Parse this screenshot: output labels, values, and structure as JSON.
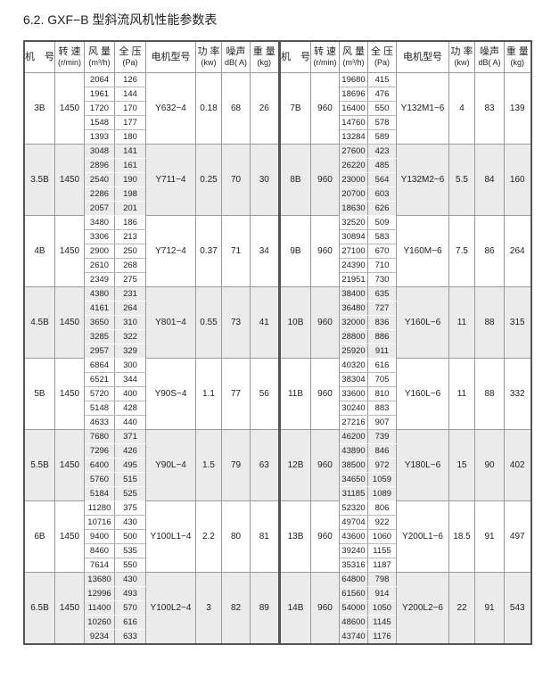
{
  "title": "6.2. GXF−B 型斜流风机性能参数表",
  "headers": [
    {
      "label": "机　号",
      "unit": ""
    },
    {
      "label": "转 速",
      "unit": "(r/min)"
    },
    {
      "label": "风 量",
      "unit": "(m³/h)"
    },
    {
      "label": "全 压",
      "unit": "(Pa)"
    },
    {
      "label": "电机型号",
      "unit": ""
    },
    {
      "label": "功 率",
      "unit": "(kw)"
    },
    {
      "label": "噪声",
      "unit": "dB( A)"
    },
    {
      "label": "重 量",
      "unit": "(kg)"
    }
  ],
  "left_groups": [
    {
      "model": "3B",
      "speed": "1450",
      "airflow": [
        "2064",
        "1961",
        "1720",
        "1548",
        "1393"
      ],
      "pressure": [
        "126",
        "144",
        "170",
        "177",
        "180"
      ],
      "motor": "Y632−4",
      "power": "0.18",
      "noise": "68",
      "weight": "26"
    },
    {
      "model": "3.5B",
      "speed": "1450",
      "airflow": [
        "3048",
        "2896",
        "2540",
        "2286",
        "2057"
      ],
      "pressure": [
        "141",
        "161",
        "190",
        "198",
        "201"
      ],
      "motor": "Y711−4",
      "power": "0.25",
      "noise": "70",
      "weight": "30"
    },
    {
      "model": "4B",
      "speed": "1450",
      "airflow": [
        "3480",
        "3306",
        "2900",
        "2610",
        "2349"
      ],
      "pressure": [
        "186",
        "213",
        "250",
        "268",
        "275"
      ],
      "motor": "Y712−4",
      "power": "0.37",
      "noise": "71",
      "weight": "34"
    },
    {
      "model": "4.5B",
      "speed": "1450",
      "airflow": [
        "4380",
        "4161",
        "3650",
        "3285",
        "2957"
      ],
      "pressure": [
        "231",
        "264",
        "310",
        "322",
        "329"
      ],
      "motor": "Y801−4",
      "power": "0.55",
      "noise": "73",
      "weight": "41"
    },
    {
      "model": "5B",
      "speed": "1450",
      "airflow": [
        "6864",
        "6521",
        "5720",
        "5148",
        "4633"
      ],
      "pressure": [
        "300",
        "344",
        "400",
        "428",
        "440"
      ],
      "motor": "Y90S−4",
      "power": "1.1",
      "noise": "77",
      "weight": "56"
    },
    {
      "model": "5.5B",
      "speed": "1450",
      "airflow": [
        "7680",
        "7296",
        "6400",
        "5760",
        "5184"
      ],
      "pressure": [
        "371",
        "426",
        "495",
        "515",
        "525"
      ],
      "motor": "Y90L−4",
      "power": "1.5",
      "noise": "79",
      "weight": "63"
    },
    {
      "model": "6B",
      "speed": "1450",
      "airflow": [
        "11280",
        "10716",
        "9400",
        "8460",
        "7614"
      ],
      "pressure": [
        "375",
        "430",
        "500",
        "535",
        "550"
      ],
      "motor": "Y100L1−4",
      "power": "2.2",
      "noise": "80",
      "weight": "81"
    },
    {
      "model": "6.5B",
      "speed": "1450",
      "airflow": [
        "13680",
        "12996",
        "11400",
        "10260",
        "9234"
      ],
      "pressure": [
        "430",
        "493",
        "570",
        "616",
        "633"
      ],
      "motor": "Y100L2−4",
      "power": "3",
      "noise": "82",
      "weight": "89"
    }
  ],
  "right_groups": [
    {
      "model": "7B",
      "speed": "960",
      "airflow": [
        "19680",
        "18696",
        "16400",
        "14760",
        "13284"
      ],
      "pressure": [
        "415",
        "476",
        "550",
        "578",
        "589"
      ],
      "motor": "Y132M1−6",
      "power": "4",
      "noise": "83",
      "weight": "139"
    },
    {
      "model": "8B",
      "speed": "960",
      "airflow": [
        "27600",
        "26220",
        "23000",
        "20700",
        "18630"
      ],
      "pressure": [
        "423",
        "485",
        "564",
        "603",
        "626"
      ],
      "motor": "Y132M2−6",
      "power": "5.5",
      "noise": "84",
      "weight": "160"
    },
    {
      "model": "9B",
      "speed": "960",
      "airflow": [
        "32520",
        "30894",
        "27100",
        "24390",
        "21951"
      ],
      "pressure": [
        "509",
        "583",
        "670",
        "710",
        "730"
      ],
      "motor": "Y160M−6",
      "power": "7.5",
      "noise": "86",
      "weight": "264"
    },
    {
      "model": "10B",
      "speed": "960",
      "airflow": [
        "38400",
        "36480",
        "32000",
        "28800",
        "25920"
      ],
      "pressure": [
        "635",
        "727",
        "836",
        "886",
        "911"
      ],
      "motor": "Y160L−6",
      "power": "11",
      "noise": "88",
      "weight": "315"
    },
    {
      "model": "11B",
      "speed": "960",
      "airflow": [
        "40320",
        "38304",
        "33600",
        "30240",
        "27216"
      ],
      "pressure": [
        "616",
        "705",
        "810",
        "883",
        "907"
      ],
      "motor": "Y160L−6",
      "power": "11",
      "noise": "88",
      "weight": "332"
    },
    {
      "model": "12B",
      "speed": "960",
      "airflow": [
        "46200",
        "43890",
        "38500",
        "34650",
        "31185"
      ],
      "pressure": [
        "739",
        "846",
        "972",
        "1059",
        "1089"
      ],
      "motor": "Y180L−6",
      "power": "15",
      "noise": "90",
      "weight": "402"
    },
    {
      "model": "13B",
      "speed": "960",
      "airflow": [
        "52320",
        "49704",
        "43600",
        "39240",
        "35316"
      ],
      "pressure": [
        "806",
        "922",
        "1060",
        "1155",
        "1187"
      ],
      "motor": "Y200L1−6",
      "power": "18.5",
      "noise": "91",
      "weight": "497"
    },
    {
      "model": "14B",
      "speed": "960",
      "airflow": [
        "64800",
        "61560",
        "54000",
        "48600",
        "43740"
      ],
      "pressure": [
        "798",
        "914",
        "1050",
        "1145",
        "1176"
      ],
      "motor": "Y200L2−6",
      "power": "22",
      "noise": "91",
      "weight": "543"
    }
  ]
}
